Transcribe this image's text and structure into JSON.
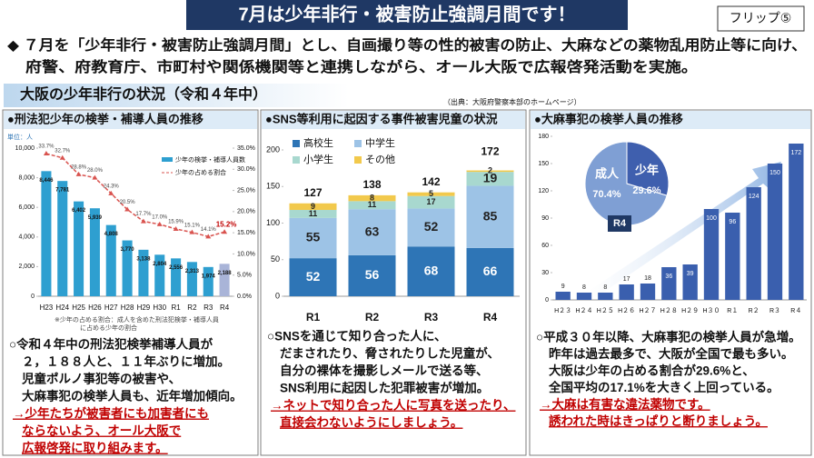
{
  "header": {
    "title": "7月は少年非行・被害防止強調月間です！",
    "flip": "フリップ⑤"
  },
  "intro": [
    "◆ ７月を「少年非行・被害防止強調月間」とし、自画撮り等の性的被害の防止、大麻などの薬物乱用防止等に向け、",
    "府警、府教育庁、市町村や関係機関等と連携しながら、オール大阪で広報啓発活動を実施。"
  ],
  "section": {
    "title": "大阪の少年非行の状況（令和４年中）",
    "source": "（出典：大阪府警察本部のホームページ）"
  },
  "notes": [
    {
      "lines": [
        "○令和４年中の刑法犯検挙補導人員が",
        "２，１８８人と、１１年ぶりに増加。",
        "児童ポルノ事犯等の被害や、",
        "大麻事犯の検挙人員も、近年増加傾向。"
      ],
      "action": [
        "→少年たちが被害者にも加害者にも",
        "ならないよう、オール大阪で",
        "広報啓発に取り組みます。"
      ]
    },
    {
      "lines": [
        "○SNSを通じて知り合った人に、",
        "だまされたり、脅されたりした児童が、",
        "自分の裸体を撮影しメールで送る等、",
        "SNS利用に起因した犯罪被害が増加。"
      ],
      "action": [
        "→ネットで知り合った人に写真を送ったり、",
        "直接会わないようにしましょう。"
      ]
    },
    {
      "lines": [
        "○平成３０年以降、大麻事犯の検挙人員が急増。",
        "昨年は過去最多で、大阪が全国で最も多い。",
        "大阪は少年の占める割合が29.6%と、",
        "全国平均の17.1%を大きく上回っている。"
      ],
      "action": [
        "→大麻は有害な違法薬物です。",
        "誘われた時はきっぱりと断りましょう。"
      ]
    }
  ],
  "chart_data": [
    {
      "type": "bar",
      "title": "●刑法犯少年の検挙・補導人員の推移",
      "unit": "単位：人",
      "categories": [
        "H23",
        "H24",
        "H25",
        "H26",
        "H27",
        "H28",
        "H29",
        "H30",
        "R1",
        "R2",
        "R3",
        "R4"
      ],
      "series": [
        {
          "name": "少年の検挙・補導人員数",
          "color": "#2e9fd0",
          "colors": [
            "#2e9fd0",
            "#2e9fd0",
            "#2e9fd0",
            "#2e9fd0",
            "#2e9fd0",
            "#2e9fd0",
            "#2e9fd0",
            "#2e9fd0",
            "#2e9fd0",
            "#2e9fd0",
            "#2e9fd0",
            "#a9b4d8"
          ],
          "values": [
            8446,
            7781,
            6402,
            5939,
            4808,
            3770,
            3138,
            2804,
            2556,
            2313,
            1974,
            2188
          ],
          "value_labels": [
            "8,446",
            "7,781",
            "6,402",
            "5,939",
            "4,808",
            "3,770",
            "3,138",
            "2,804",
            "2,556",
            "2,313",
            "1,974",
            "2,188"
          ]
        },
        {
          "name": "少年の占める割合",
          "type": "line",
          "axis": "y2",
          "color": "#d9534f",
          "values": [
            33.7,
            32.7,
            28.8,
            28.0,
            24.3,
            20.5,
            17.7,
            17.0,
            15.9,
            15.1,
            14.1,
            15.2
          ],
          "value_labels": [
            "33.7%",
            "32.7%",
            "28.8%",
            "28.0%",
            "24.3%",
            "20.5%",
            "17.7%",
            "17.0%",
            "15.9%",
            "15.1%",
            "14.1%",
            "15.2%"
          ]
        }
      ],
      "ylim": [
        0,
        10000
      ],
      "yticks": [
        0,
        {
          "value": 2000,
          "label": "2,000"
        },
        {
          "value": 4000,
          "label": "4,000"
        },
        {
          "value": 6000,
          "label": "6,000"
        },
        {
          "value": 8000,
          "label": "8,000"
        },
        {
          "value": 10000,
          "label": "10,000"
        }
      ],
      "y2lim": [
        0,
        35
      ],
      "y2ticks": [
        {
          "value": 0,
          "label": "0.0%"
        },
        {
          "value": 5,
          "label": "5.0%"
        },
        {
          "value": 10,
          "label": "10.0%"
        },
        {
          "value": 15,
          "label": "15.0%"
        },
        {
          "value": 20,
          "label": "20.0%"
        },
        {
          "value": 25,
          "label": "25.0%"
        },
        {
          "value": 30,
          "label": "30.0%"
        },
        {
          "value": 35,
          "label": "35.0%"
        }
      ],
      "grid": false,
      "legend": "upper right",
      "footnote": [
        "※少年の占める割合：成人を含めた刑法犯検挙・補導人員",
        "に占める少年の割合"
      ]
    },
    {
      "type": "bar",
      "stacked": true,
      "title": "●SNS等利用に起因する事件被害児童の状況",
      "categories": [
        "R1",
        "R2",
        "R3",
        "R4"
      ],
      "series": [
        {
          "name": "高校生",
          "color": "#2e75b6",
          "values": [
            52,
            56,
            68,
            66
          ]
        },
        {
          "name": "中学生",
          "color": "#9dc3e6",
          "values": [
            55,
            63,
            52,
            85
          ]
        },
        {
          "name": "小学生",
          "color": "#a8d8cf",
          "values": [
            11,
            11,
            17,
            19
          ]
        },
        {
          "name": "その他",
          "color": "#f2c94c",
          "values": [
            9,
            8,
            5,
            2
          ]
        }
      ],
      "totals": [
        127,
        138,
        142,
        172
      ],
      "ylim": [
        0,
        200
      ],
      "yticks": [
        0,
        50,
        100,
        150,
        200
      ],
      "grid": false,
      "legend": "upper left"
    },
    {
      "type": "bar",
      "title": "●大麻事犯の検挙人員の推移",
      "categories": [
        "H２３",
        "H２４",
        "H２５",
        "H２６",
        "H２７",
        "H２８",
        "H２９",
        "H３０",
        "R１",
        "R２",
        "R３",
        "R４"
      ],
      "values": [
        9,
        8,
        8,
        17,
        18,
        36,
        39,
        100,
        96,
        124,
        150,
        172
      ],
      "color": "#3a5fae",
      "ylim": [
        0,
        180
      ],
      "yticks": [
        0,
        30,
        60,
        90,
        120,
        150,
        180
      ],
      "grid": false
    },
    {
      "type": "pie",
      "title": "R4",
      "categories": [
        "成人",
        "少年"
      ],
      "values": [
        70.4,
        29.6
      ],
      "value_labels": [
        "70.4%",
        "29.6%"
      ],
      "colors": [
        "#7f9fd4",
        "#3f5fae"
      ]
    }
  ]
}
